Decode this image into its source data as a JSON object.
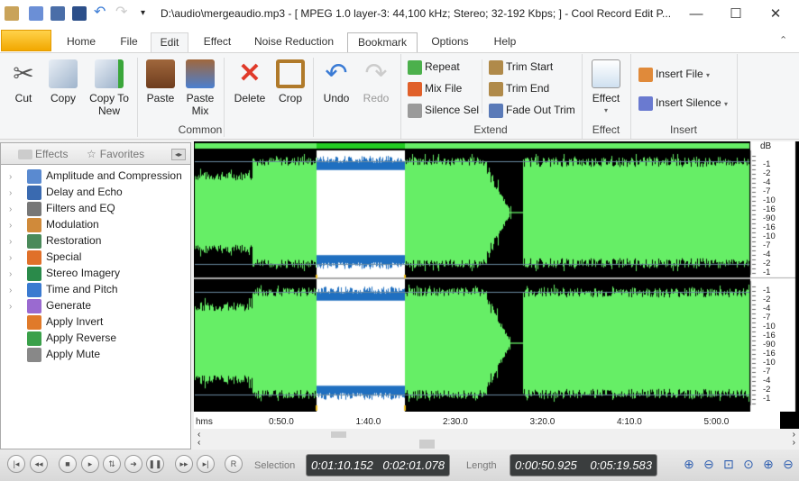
{
  "window": {
    "title": "D:\\audio\\mergeaudio.mp3 - [ MPEG 1.0 layer-3: 44,100 kHz; Stereo; 32-192 Kbps;  ] - Cool Record Edit P...",
    "minimize": "—",
    "maximize": "☐",
    "close": "✕"
  },
  "tabs": [
    "Home",
    "File",
    "Edit",
    "Effect",
    "Noise Reduction",
    "Bookmark",
    "Options",
    "Help"
  ],
  "active_tab": "Edit",
  "ribbon": {
    "common": {
      "label": "Common",
      "buttons": [
        "Cut",
        "Copy",
        "Copy To New",
        "Paste",
        "Paste Mix",
        "Delete",
        "Crop",
        "Undo",
        "Redo"
      ]
    },
    "extend": {
      "label": "Extend",
      "buttons": [
        "Repeat",
        "Mix File",
        "Silence Sel",
        "Trim Start",
        "Trim End",
        "Fade Out Trim"
      ]
    },
    "effect": {
      "label": "Effect",
      "button": "Effect"
    },
    "insert": {
      "label": "Insert",
      "buttons": [
        "Insert File",
        "Insert Silence"
      ]
    }
  },
  "left_panel": {
    "tabs": [
      "Effects",
      "Favorites"
    ],
    "items": [
      "Amplitude and Compression",
      "Delay and Echo",
      "Filters and EQ",
      "Modulation",
      "Restoration",
      "Special",
      "Stereo Imagery",
      "Time and Pitch",
      "Generate",
      "Apply Invert",
      "Apply Reverse",
      "Apply Mute"
    ]
  },
  "db_scale": {
    "unit": "dB",
    "labels": [
      "-1",
      "-2",
      "-4",
      "-7",
      "-10",
      "-16",
      "-90",
      "-16",
      "-10",
      "-7",
      "-4",
      "-2",
      "-1"
    ]
  },
  "time_ruler": {
    "unit": "hms",
    "ticks": [
      "0:50.0",
      "1:40.0",
      "2:30.0",
      "3:20.0",
      "4:10.0",
      "5:00.0"
    ]
  },
  "colors": {
    "wave": "#66ee66",
    "selection_wave": "#1f6fc0",
    "selection_bg": "#ffffff",
    "background": "#000000"
  },
  "transport": {
    "record": "R"
  },
  "selection": {
    "label": "Selection",
    "start": "0:01:10.152",
    "end": "0:02:01.078"
  },
  "length": {
    "label": "Length",
    "selection": "0:00:50.925",
    "total": "0:05:19.583"
  }
}
